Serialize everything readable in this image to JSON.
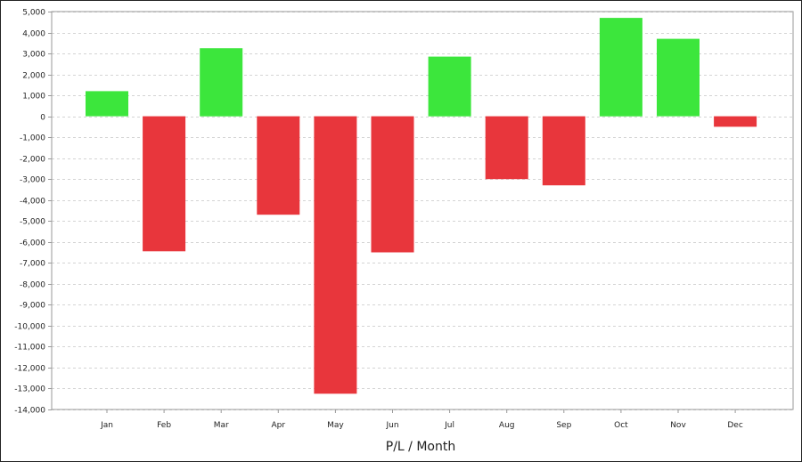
{
  "chart_data": {
    "type": "bar",
    "xlabel": "P/L / Month",
    "ylabel": "",
    "categories": [
      "Jan",
      "Feb",
      "Mar",
      "Apr",
      "May",
      "Jun",
      "Jul",
      "Aug",
      "Sep",
      "Oct",
      "Nov",
      "Dec"
    ],
    "values": [
      1200,
      -6450,
      3250,
      -4700,
      -13250,
      -6500,
      2850,
      -3000,
      -3300,
      4700,
      3700,
      -500
    ],
    "ylim": [
      -14000,
      5000
    ],
    "yticks": [
      5000,
      4000,
      3000,
      2000,
      1000,
      0,
      -1000,
      -2000,
      -3000,
      -4000,
      -5000,
      -6000,
      -7000,
      -8000,
      -9000,
      -10000,
      -11000,
      -12000,
      -13000,
      -14000
    ],
    "ytick_labels": [
      "5,000",
      "4,000",
      "3,000",
      "2,000",
      "1,000",
      "0",
      "-1,000",
      "-2,000",
      "-3,000",
      "-4,000",
      "-5,000",
      "-6,000",
      "-7,000",
      "-8,000",
      "-9,000",
      "-10,000",
      "-11,000",
      "-12,000",
      "-13,000",
      "-14,000"
    ],
    "grid": true,
    "colors": {
      "positive": "#3ce63c",
      "negative": "#e8363c",
      "grid": "#d4d4d4",
      "axis": "#9a9a9a",
      "plot_border": "#9a9a9a"
    }
  }
}
